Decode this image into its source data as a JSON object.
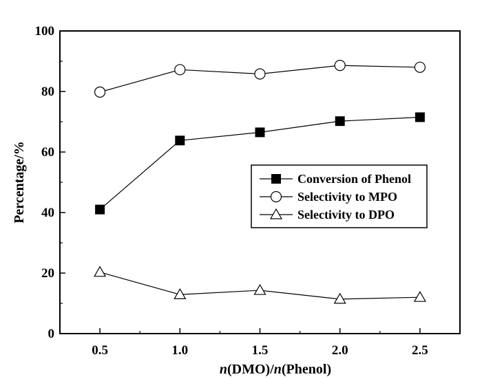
{
  "chart_data": {
    "type": "line",
    "title": "",
    "xlabel_italic_1": "n",
    "xlabel_part_1": "(DMO)/",
    "xlabel_italic_2": "n",
    "xlabel_part_2": "(Phenol)",
    "ylabel": "Percentage/%",
    "x": [
      0.5,
      1.0,
      1.5,
      2.0,
      2.5
    ],
    "x_tick_labels": [
      "0.5",
      "1.0",
      "1.5",
      "2.0",
      "2.5"
    ],
    "y_tick_labels": [
      "0",
      "20",
      "40",
      "60",
      "80",
      "100"
    ],
    "xlim": [
      0.25,
      2.75
    ],
    "ylim": [
      0,
      100
    ],
    "grid": false,
    "legend_position": "center-right",
    "series": [
      {
        "name": "Conversion of Phenol",
        "marker": "filled-square",
        "color": "#000000",
        "values": [
          41.0,
          63.8,
          66.5,
          70.2,
          71.5
        ]
      },
      {
        "name": "Selectivity to MPO",
        "marker": "open-circle",
        "color": "#000000",
        "values": [
          79.8,
          87.2,
          85.8,
          88.6,
          88.0
        ]
      },
      {
        "name": "Selectivity to DPO",
        "marker": "open-triangle",
        "color": "#000000",
        "values": [
          20.3,
          12.9,
          14.3,
          11.4,
          12.0
        ]
      }
    ]
  }
}
